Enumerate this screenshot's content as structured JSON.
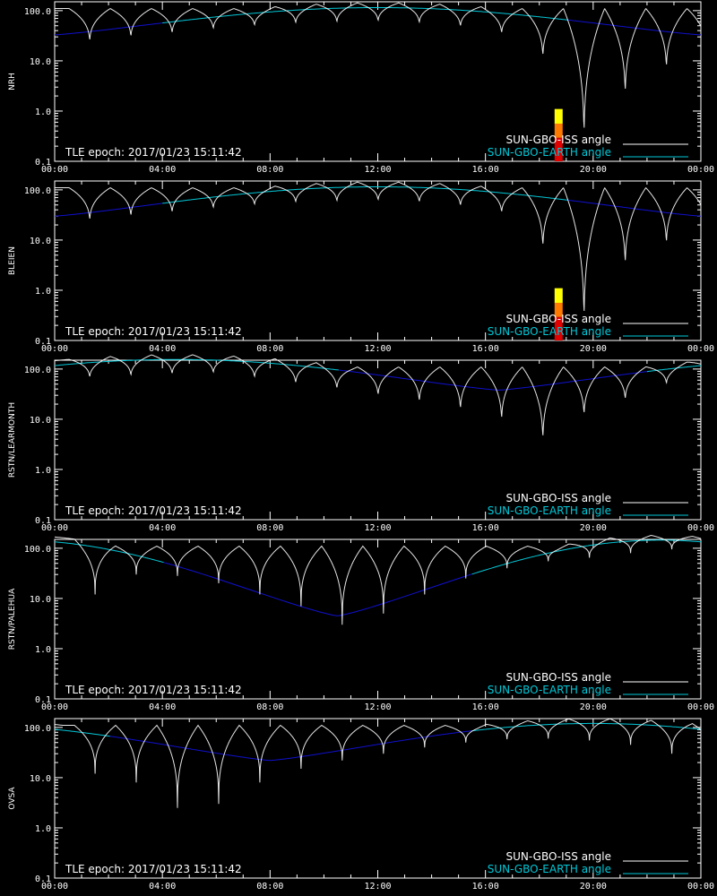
{
  "page": {
    "background": "#000000"
  },
  "colors": {
    "iss_line": "#ffffff",
    "earth_line_visible": "#00c8d8",
    "earth_line_blocked": "#1010d0",
    "axis": "#ffffff",
    "bar_red": "#e00000",
    "bar_orange": "#ff7a00",
    "bar_yellow": "#ffff00"
  },
  "chart_data": [
    {
      "type": "line",
      "ylabel": "NRH",
      "epoch_text": "TLE epoch: 2017/01/23 15:11:42",
      "legend": [
        "SUN-GBO-ISS angle",
        "SUN-GBO-EARTH angle"
      ],
      "xlim": [
        "00:00",
        "24:00"
      ],
      "xticks": [
        "00:00",
        "04:00",
        "08:00",
        "12:00",
        "16:00",
        "20:00",
        "00:00"
      ],
      "ylim": [
        0.1,
        150
      ],
      "yscale": "log",
      "yticks": [
        "0.1",
        "1.0",
        "10.0",
        "100.0"
      ],
      "earth_curve": {
        "min_hour": 0.0,
        "min_value": 33,
        "max_hour": 12.0,
        "max_value": 115,
        "visible_hours": [
          [
            4,
            19
          ]
        ]
      },
      "iss_orbits": {
        "period_hours": 1.53,
        "first_min_hour": 1.3,
        "min_values": [
          20,
          25,
          30,
          38,
          45,
          50,
          52,
          55,
          50,
          42,
          30,
          9,
          0.15,
          1.3,
          5,
          9
        ]
      },
      "contact_bar": {
        "hour": 18.7,
        "bottom": 0.1,
        "top": 1.1
      }
    },
    {
      "type": "line",
      "ylabel": "BLEIEN",
      "epoch_text": "TLE epoch: 2017/01/23 15:11:42",
      "legend": [
        "SUN-GBO-ISS angle",
        "SUN-GBO-EARTH angle"
      ],
      "xlim": [
        "00:00",
        "24:00"
      ],
      "xticks": [
        "00:00",
        "04:00",
        "08:00",
        "12:00",
        "16:00",
        "20:00",
        "00:00"
      ],
      "ylim": [
        0.1,
        150
      ],
      "yscale": "log",
      "yticks": [
        "0.1",
        "1.0",
        "10.0",
        "100.0"
      ],
      "earth_curve": {
        "min_hour": 0.0,
        "min_value": 30,
        "max_hour": 12.0,
        "max_value": 115,
        "visible_hours": [
          [
            4,
            19
          ]
        ]
      },
      "iss_orbits": {
        "period_hours": 1.53,
        "first_min_hour": 1.3,
        "min_values": [
          20,
          25,
          30,
          38,
          45,
          50,
          52,
          55,
          50,
          42,
          30,
          5,
          0.12,
          2,
          6,
          10
        ]
      },
      "contact_bar": {
        "hour": 18.7,
        "bottom": 0.1,
        "top": 1.1
      }
    },
    {
      "type": "line",
      "ylabel": "RSTN/LEARMONTH",
      "epoch_text": "TLE epoch: 2017/01/23 15:11:42",
      "legend": [
        "SUN-GBO-ISS angle",
        "SUN-GBO-EARTH angle"
      ],
      "xlim": [
        "00:00",
        "24:00"
      ],
      "xticks": [
        "00:00",
        "04:00",
        "08:00",
        "12:00",
        "16:00",
        "20:00",
        "00:00"
      ],
      "ylim": [
        0.1,
        150
      ],
      "yscale": "log",
      "yticks": [
        "0.1",
        "1.0",
        "10.0",
        "100.0"
      ],
      "earth_curve": {
        "min_hour": 16.5,
        "min_value": 38,
        "max_hour": 4.5,
        "max_value": 155,
        "visible_hours": [
          [
            0,
            10.5
          ],
          [
            22,
            24
          ]
        ]
      },
      "iss_orbits": {
        "period_hours": 1.53,
        "first_min_hour": 1.3,
        "min_values": [
          60,
          65,
          70,
          75,
          60,
          45,
          35,
          25,
          18,
          12,
          7,
          2.5,
          9,
          20,
          45,
          90
        ]
      }
    },
    {
      "type": "line",
      "ylabel": "RSTN/PALEHUA",
      "epoch_text": "TLE epoch: 2017/01/23 15:11:42",
      "legend": [
        "SUN-GBO-ISS angle",
        "SUN-GBO-EARTH angle"
      ],
      "xlim": [
        "00:00",
        "24:00"
      ],
      "xticks": [
        "00:00",
        "04:00",
        "08:00",
        "12:00",
        "16:00",
        "20:00",
        "00:00"
      ],
      "ylim": [
        0.1,
        150
      ],
      "yscale": "log",
      "yticks": [
        "0.1",
        "1.0",
        "10.0",
        "100.0"
      ],
      "earth_curve": {
        "min_hour": 10.5,
        "min_value": 4.5,
        "max_hour": 22.5,
        "max_value": 145,
        "visible_hours": [
          [
            0,
            4
          ],
          [
            15.5,
            24
          ]
        ]
      },
      "iss_orbits": {
        "period_hours": 1.53,
        "first_min_hour": 1.5,
        "min_values": [
          12,
          30,
          28,
          20,
          12,
          7,
          3,
          5,
          12,
          25,
          40,
          55,
          65,
          80,
          95,
          110
        ]
      }
    },
    {
      "type": "line",
      "ylabel": "OVSA",
      "epoch_text": "TLE epoch: 2017/01/23 15:11:42",
      "legend": [
        "SUN-GBO-ISS angle",
        "SUN-GBO-EARTH angle"
      ],
      "xlim": [
        "00:00",
        "24:00"
      ],
      "xticks": [
        "00:00",
        "04:00",
        "08:00",
        "12:00",
        "16:00",
        "20:00",
        "00:00"
      ],
      "ylim": [
        0.1,
        150
      ],
      "yscale": "log",
      "yticks": [
        "0.1",
        "1.0",
        "10.0",
        "100.0"
      ],
      "earth_curve": {
        "min_hour": 8.0,
        "min_value": 22,
        "max_hour": 20.0,
        "max_value": 120,
        "visible_hours": [
          [
            0,
            2
          ],
          [
            15.5,
            24
          ]
        ]
      },
      "iss_orbits": {
        "period_hours": 1.53,
        "first_min_hour": 1.5,
        "min_values": [
          12,
          8,
          2.5,
          3,
          8,
          15,
          22,
          30,
          40,
          50,
          58,
          60,
          55,
          45,
          30,
          28
        ]
      }
    }
  ]
}
